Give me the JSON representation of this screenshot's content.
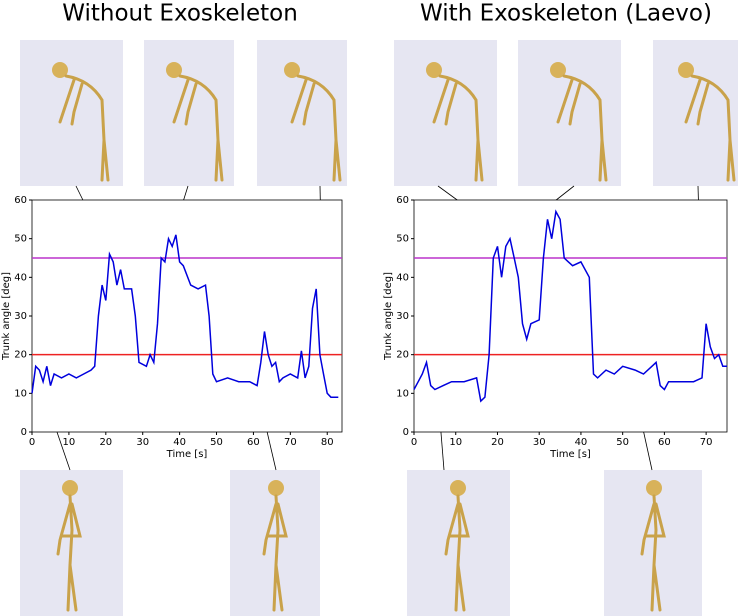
{
  "chart_data": [
    {
      "type": "line",
      "title": "Without Exoskeleton",
      "xlabel": "Time [s]",
      "ylabel": "Trunk angle [deg]",
      "x": [
        0,
        1,
        2,
        3,
        4,
        5,
        6,
        8,
        10,
        12,
        14,
        16,
        17,
        18,
        19,
        20,
        21,
        22,
        23,
        24,
        25,
        27,
        28,
        29,
        31,
        32,
        33,
        34,
        35,
        36,
        37,
        38,
        39,
        40,
        41,
        43,
        45,
        47,
        48,
        49,
        50,
        53,
        56,
        59,
        61,
        62,
        63,
        64,
        65,
        66,
        67,
        68,
        70,
        72,
        73,
        74,
        75,
        76,
        77,
        78,
        79,
        80,
        81,
        83
      ],
      "series": [
        {
          "color": "#0000dd",
          "values": [
            10,
            17,
            16,
            13,
            17,
            12,
            15,
            14,
            15,
            14,
            15,
            16,
            17,
            30,
            38,
            34,
            46,
            44,
            38,
            42,
            37,
            37,
            30,
            18,
            17,
            20,
            18,
            28,
            45,
            44,
            50,
            48,
            51,
            44,
            43,
            38,
            37,
            38,
            30,
            15,
            13,
            14,
            13,
            13,
            12,
            18,
            26,
            20,
            17,
            18,
            13,
            14,
            15,
            14,
            21,
            14,
            17,
            32,
            37,
            20,
            15,
            10,
            9,
            9
          ]
        }
      ],
      "hlines": [
        {
          "value": 20,
          "color": "#ee2222"
        },
        {
          "value": 45,
          "color": "#bb33cc"
        }
      ],
      "xlim": [
        0,
        84
      ],
      "xticks": [
        0,
        10,
        20,
        30,
        40,
        50,
        60,
        70,
        80
      ],
      "ylim": [
        0,
        60
      ],
      "yticks": [
        0,
        10,
        20,
        30,
        40,
        50,
        60
      ]
    },
    {
      "type": "line",
      "title": "With Exoskeleton (Laevo)",
      "xlabel": "Time [s]",
      "ylabel": "Trunk angle [deg]",
      "x": [
        0,
        1,
        2,
        3,
        4,
        5,
        7,
        9,
        12,
        15,
        16,
        17,
        18,
        19,
        20,
        21,
        22,
        23,
        24,
        25,
        26,
        27,
        28,
        30,
        31,
        32,
        33,
        34,
        35,
        36,
        37,
        38,
        40,
        42,
        43,
        44,
        46,
        48,
        50,
        53,
        55,
        57,
        58,
        59,
        60,
        61,
        63,
        65,
        67,
        69,
        70,
        71,
        72,
        73,
        74,
        75
      ],
      "series": [
        {
          "color": "#0000dd",
          "values": [
            11,
            13,
            15,
            18,
            12,
            11,
            12,
            13,
            13,
            14,
            8,
            9,
            20,
            45,
            48,
            40,
            48,
            50,
            45,
            40,
            28,
            24,
            28,
            29,
            45,
            55,
            50,
            57,
            55,
            45,
            44,
            43,
            44,
            40,
            15,
            14,
            16,
            15,
            17,
            16,
            15,
            17,
            18,
            12,
            11,
            13,
            13,
            13,
            13,
            14,
            28,
            22,
            19,
            20,
            17,
            17
          ]
        }
      ],
      "hlines": [
        {
          "value": 20,
          "color": "#ee2222"
        },
        {
          "value": 45,
          "color": "#bb33cc"
        }
      ],
      "xlim": [
        0,
        75
      ],
      "xticks": [
        0,
        10,
        20,
        30,
        40,
        50,
        60,
        70
      ],
      "ylim": [
        0,
        60
      ],
      "yticks": [
        0,
        10,
        20,
        30,
        40,
        50,
        60
      ]
    }
  ]
}
